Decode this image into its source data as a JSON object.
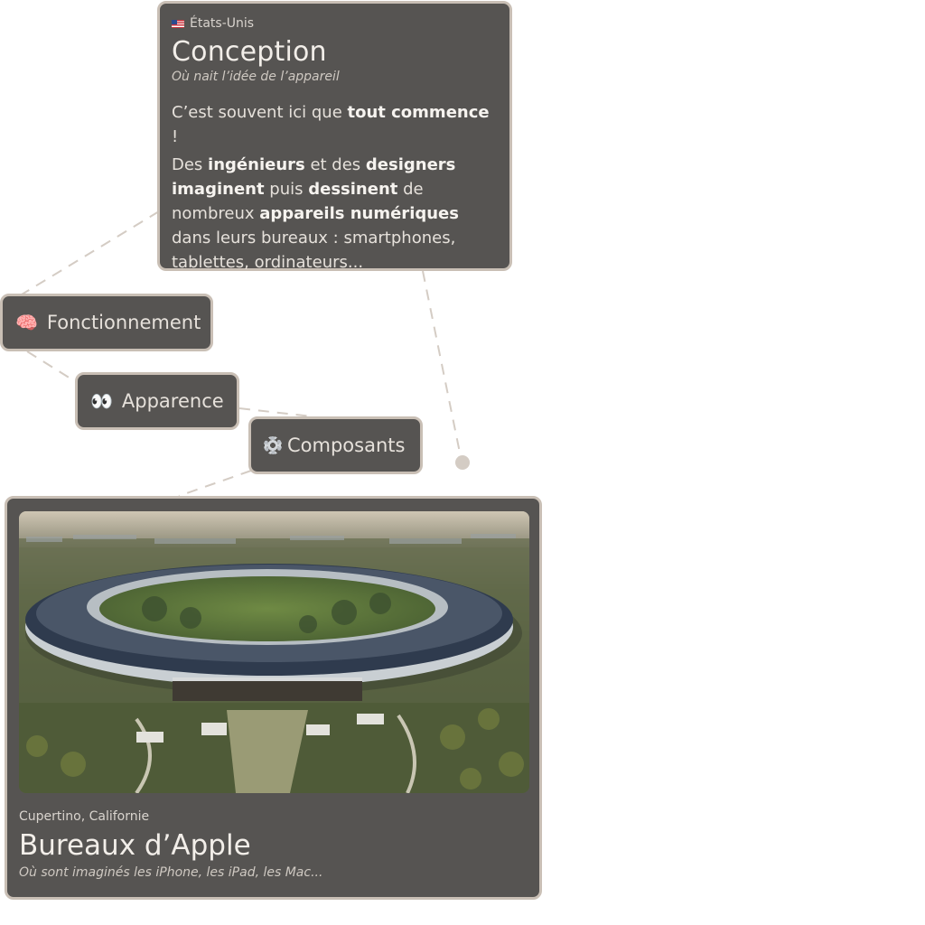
{
  "conception": {
    "country": "États-Unis",
    "title": "Conception",
    "subtitle": "Où nait l’idée de l’appareil",
    "p1": {
      "a": "C’est souvent ici que ",
      "b": "tout commence",
      "c": " !"
    },
    "p2": {
      "a": "Des ",
      "b": "ingénieurs",
      "c": " et des ",
      "d": "designers imaginent",
      "e": " puis ",
      "f": "dessinent",
      "g": " de nombreux ",
      "h": "appareils numériques",
      "i": " dans leurs bureaux : smartphones, tablettes, ordinateurs..."
    }
  },
  "nodes": {
    "fonctionnement": {
      "emoji": "🧠",
      "label": "Fonctionnement"
    },
    "apparence": {
      "emoji": "👀",
      "label": "Apparence"
    },
    "composants": {
      "icon": "gear-icon",
      "label": "Composants"
    }
  },
  "apple": {
    "image": "aerial-campus-photo",
    "location": "Cupertino, Californie",
    "title": "Bureaux d’Apple",
    "subtitle": "Où sont imaginés les iPhone, les iPad, les Mac..."
  },
  "colors": {
    "card_bg": "#565452",
    "card_border": "#c9bfb5",
    "connector": "#d4ccc4"
  }
}
